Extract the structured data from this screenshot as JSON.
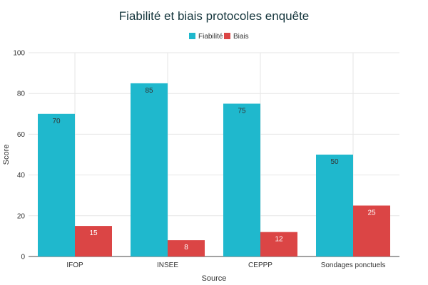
{
  "chart_data": {
    "type": "bar",
    "title": "Fiabilité et biais protocoles enquête",
    "xlabel": "Source",
    "ylabel": "Score",
    "categories": [
      "IFOP",
      "INSEE",
      "CEPPP",
      "Sondages ponctuels"
    ],
    "series": [
      {
        "name": "Fiabilité",
        "values": [
          70,
          85,
          75,
          50
        ],
        "color": "#1fb8cd"
      },
      {
        "name": "Biais",
        "values": [
          15,
          8,
          12,
          25
        ],
        "color": "#db4545"
      }
    ],
    "ylim": [
      0,
      100
    ],
    "yticks": [
      0,
      20,
      40,
      60,
      80,
      100
    ],
    "grid": true,
    "legend_position": "top-center",
    "colors": {
      "grid": "#e6e6e6",
      "axis": "#444444",
      "text": "#333333",
      "title": "#13343b"
    }
  }
}
